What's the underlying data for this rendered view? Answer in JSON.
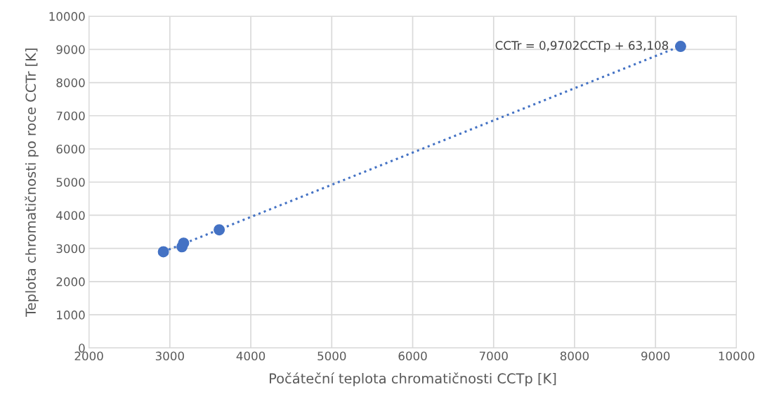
{
  "chart_data": {
    "type": "scatter",
    "xlabel": "Počáteční teplota chromatičnosti CCTp [K]",
    "ylabel": "Teplota chromatičnosti po roce CCTr [K]",
    "series": [
      {
        "color": "#4472c4",
        "marker": "circle",
        "x": [
          2920,
          3150,
          3170,
          3610,
          9310
        ],
        "values": [
          2900,
          3050,
          3160,
          3560,
          9090
        ]
      },
      {
        "type": "line",
        "color": "#4472c4",
        "x": [
          2920,
          9310
        ],
        "values": [
          2900,
          9100
        ],
        "line_style": "dotted",
        "marker": "none"
      }
    ],
    "annotations": [
      {
        "text": "CCTr = 0,9702CCTp + 63,108",
        "x": 9310,
        "y": 9090
      }
    ],
    "xlim": [
      2000,
      10000
    ],
    "xticks": [
      2000,
      3000,
      4000,
      5000,
      6000,
      7000,
      8000,
      9000,
      10000
    ],
    "ylim": [
      0,
      10000
    ],
    "yticks": [
      0,
      1000,
      2000,
      3000,
      4000,
      5000,
      6000,
      7000,
      8000,
      9000,
      10000
    ],
    "grid": true
  }
}
